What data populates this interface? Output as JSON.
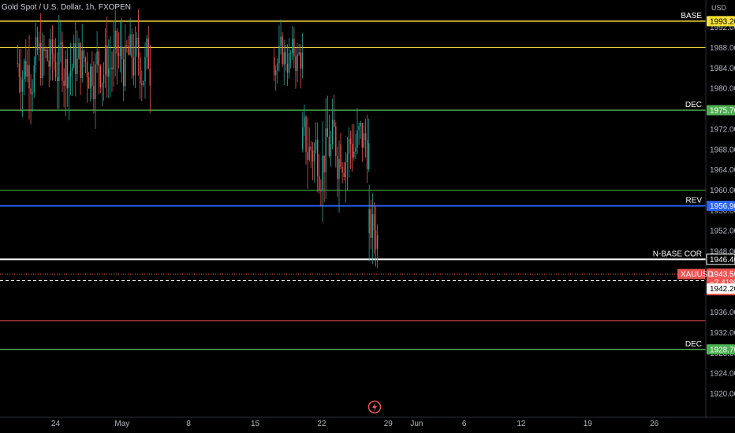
{
  "header": {
    "symbol_title": "Gold Spot / U.S. Dollar, 1h, FXOPEN",
    "currency": "USD"
  },
  "colors": {
    "background": "#000000",
    "up": "#26a69a",
    "down": "#ef5350",
    "yellow": "#f5e03a",
    "green": "#4caf50",
    "blue": "#2962ff",
    "white": "#ffffff",
    "red": "#ef5350"
  },
  "icons": {
    "logo": "lightning-icon"
  },
  "chart_data": {
    "type": "candlestick",
    "ylim": [
      1917,
      1996
    ],
    "y_ticks": [
      "1920.00",
      "1924.00",
      "1928.00",
      "1932.00",
      "1936.00",
      "1940.00",
      "1944.00",
      "1948.00",
      "1952.00",
      "1956.00",
      "1960.00",
      "1964.00",
      "1968.00",
      "1972.00",
      "1976.00",
      "1980.00",
      "1984.00",
      "1988.00",
      "1992.00"
    ],
    "x_ticks": [
      {
        "label": "24",
        "date": "2023-04-24"
      },
      {
        "label": "May",
        "date": "2023-05-01"
      },
      {
        "label": "8",
        "date": "2023-05-08"
      },
      {
        "label": "15",
        "date": "2023-05-15"
      },
      {
        "label": "22",
        "date": "2023-05-22"
      },
      {
        "label": "29",
        "date": "2023-05-29"
      },
      {
        "label": "Jun",
        "date": "2023-06-01"
      },
      {
        "label": "6",
        "date": "2023-06-06"
      },
      {
        "label": "12",
        "date": "2023-06-12"
      },
      {
        "label": "19",
        "date": "2023-06-19"
      },
      {
        "label": "26",
        "date": "2023-06-26"
      }
    ],
    "levels": [
      {
        "label": "BASE",
        "price": 1993.2,
        "price_text": "1993.20",
        "color": "#f5e03a",
        "width": 1.5
      },
      {
        "label": "",
        "price": 1988.0,
        "price_text": "",
        "color": "#f5e03a",
        "width": 1
      },
      {
        "label": "DEC",
        "price": 1975.7,
        "price_text": "1975.70",
        "color": "#4caf50",
        "width": 1.5
      },
      {
        "label": "",
        "price": 1960.0,
        "price_text": "",
        "color": "#4caf50",
        "width": 1
      },
      {
        "label": "REV",
        "price": 1956.9,
        "price_text": "1956.90",
        "color": "#2962ff",
        "width": 2
      },
      {
        "label": "N-BASE COR",
        "price": 1946.4,
        "price_text": "1946.40",
        "color": "#ffffff",
        "width": 2
      },
      {
        "label": "",
        "price": 1934.3,
        "price_text": "",
        "color": "#ef5350",
        "width": 1
      },
      {
        "label": "DEC",
        "price": 1928.7,
        "price_text": "1928.70",
        "color": "#4caf50",
        "width": 1.5
      }
    ],
    "current_price": {
      "symbol": "XAUUSD",
      "price": 1943.5,
      "price_text": "1943.50",
      "change": "−2.41%",
      "countdown": "37:50",
      "color": "#ef5350"
    },
    "dashed_level": {
      "price": 1942.2,
      "price_text": "1942.20",
      "color": "#ffffff"
    },
    "segments": [
      {
        "start": "2023-04-20",
        "end": "2023-05-04",
        "high": 1997,
        "low": 1970,
        "mid_high": 1994,
        "mid_low": 1976
      },
      {
        "start": "2023-05-17",
        "end": "2023-05-20",
        "high": 1996,
        "low": 1972,
        "mid_high": 1992,
        "mid_low": 1980
      },
      {
        "start": "2023-05-20",
        "end": "2023-05-24",
        "high": 1985,
        "low": 1953,
        "mid_high": 1978,
        "mid_low": 1958
      },
      {
        "start": "2023-05-24",
        "end": "2023-05-27",
        "high": 1985,
        "low": 1956,
        "mid_high": 1978,
        "mid_low": 1960
      },
      {
        "start": "2023-05-27",
        "end": "2023-05-28",
        "high": 1965,
        "low": 1940,
        "mid_high": 1960,
        "mid_low": 1943
      }
    ]
  }
}
